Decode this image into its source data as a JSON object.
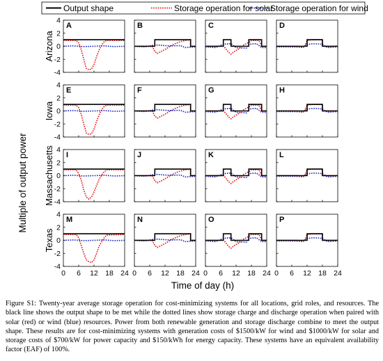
{
  "legend": [
    {
      "label": "Output shape",
      "color": "#000000",
      "dash": "solid"
    },
    {
      "label": "Storage operation for solar",
      "color": "#e41a1c",
      "dash": "dotted"
    },
    {
      "label": "Storage operation for wind",
      "color": "#1f2fbf",
      "dash": "dotted"
    }
  ],
  "row_labels": [
    "Arizona",
    "Iowa",
    "Massachusetts",
    "Texas"
  ],
  "ylabel": "Multiple of output power",
  "xlabel": "Time of day (h)",
  "caption": "Figure S1: Twenty-year average storage operation for cost-minimizing systems for all locations, grid roles, and resources. The black line shows the output shape to be met while the dotted lines show storage charge and discharge operation when paired with solar (red) or wind (blue) resources. Power from both renewable generation and storage discharge combine to meet the output shape. These results are for cost-minimizing systems with generation costs of $1500/kW for wind and $1000/kW for solar and storage costs of $700/kW for power capacity and $150/kWh for energy capacity. These systems have an equivalent availability factor (EAF) of 100%.",
  "chart_data": {
    "type": "line",
    "grid": false,
    "xlim": [
      0,
      24
    ],
    "ylim": [
      -4,
      4
    ],
    "xticks": [
      0,
      6,
      12,
      18,
      24
    ],
    "yticks": [
      -4,
      -2,
      0,
      2,
      4
    ],
    "output_shapes": {
      "A": [
        [
          0,
          1
        ],
        [
          24,
          1
        ]
      ],
      "B": [
        [
          0,
          0
        ],
        [
          8,
          0
        ],
        [
          8,
          1
        ],
        [
          22,
          1
        ],
        [
          22,
          0
        ],
        [
          24,
          0
        ]
      ],
      "C": [
        [
          0,
          0
        ],
        [
          7,
          0
        ],
        [
          7,
          1
        ],
        [
          10,
          1
        ],
        [
          10,
          0
        ],
        [
          17,
          0
        ],
        [
          17,
          1
        ],
        [
          22,
          1
        ],
        [
          22,
          0
        ],
        [
          24,
          0
        ]
      ],
      "D": [
        [
          0,
          0
        ],
        [
          12,
          0
        ],
        [
          12,
          1
        ],
        [
          18,
          1
        ],
        [
          18,
          0
        ],
        [
          24,
          0
        ]
      ]
    },
    "solar_profiles": {
      "A": [
        [
          0,
          0.9
        ],
        [
          5,
          0.9
        ],
        [
          6,
          0.5
        ],
        [
          7,
          -0.5
        ],
        [
          8,
          -2
        ],
        [
          9,
          -3.4
        ],
        [
          10,
          -3.6
        ],
        [
          11,
          -3.5
        ],
        [
          12,
          -2.8
        ],
        [
          13,
          -1.6
        ],
        [
          14,
          -0.6
        ],
        [
          15,
          0.2
        ],
        [
          16,
          0.7
        ],
        [
          17,
          0.9
        ],
        [
          24,
          0.9
        ]
      ],
      "B": [
        [
          0,
          0
        ],
        [
          7,
          0
        ],
        [
          8,
          -0.8
        ],
        [
          9,
          -1.1
        ],
        [
          10,
          -0.9
        ],
        [
          12,
          -0.5
        ],
        [
          14,
          0
        ],
        [
          16,
          0.4
        ],
        [
          18,
          0.7
        ],
        [
          20,
          0.9
        ],
        [
          22,
          1
        ],
        [
          22,
          0
        ],
        [
          24,
          0
        ]
      ],
      "C": [
        [
          0,
          0
        ],
        [
          6,
          0
        ],
        [
          7,
          0.1
        ],
        [
          9,
          -0.9
        ],
        [
          10,
          -1.2
        ],
        [
          11,
          -0.9
        ],
        [
          13,
          -0.4
        ],
        [
          15,
          0.2
        ],
        [
          17,
          0.6
        ],
        [
          18,
          0.9
        ],
        [
          21,
          0.9
        ],
        [
          22,
          0
        ],
        [
          24,
          0
        ]
      ],
      "D": [
        [
          0,
          0
        ],
        [
          8,
          0
        ],
        [
          9,
          -0.1
        ],
        [
          10,
          -0.2
        ],
        [
          11,
          -0.1
        ],
        [
          12,
          0.9
        ],
        [
          14,
          1
        ],
        [
          18,
          1
        ],
        [
          18,
          0
        ],
        [
          24,
          0
        ]
      ],
      "I": [
        [
          0,
          0.9
        ],
        [
          5,
          0.9
        ],
        [
          6,
          0.3
        ],
        [
          7,
          -0.7
        ],
        [
          8,
          -2.2
        ],
        [
          9,
          -3.3
        ],
        [
          10,
          -3.6
        ],
        [
          11,
          -3.3
        ],
        [
          12,
          -2.5
        ],
        [
          13,
          -1.5
        ],
        [
          14,
          -0.6
        ],
        [
          15,
          0.1
        ],
        [
          16,
          0.6
        ],
        [
          17,
          0.9
        ],
        [
          24,
          0.9
        ]
      ],
      "M": [
        [
          0,
          0.9
        ],
        [
          5,
          0.9
        ],
        [
          6,
          0.4
        ],
        [
          7,
          -0.8
        ],
        [
          8,
          -2
        ],
        [
          9,
          -3
        ],
        [
          10,
          -3.3
        ],
        [
          11,
          -3.4
        ],
        [
          12,
          -3
        ],
        [
          13,
          -2
        ],
        [
          14,
          -0.9
        ],
        [
          15,
          -0.2
        ],
        [
          16,
          0.4
        ],
        [
          17,
          0.8
        ],
        [
          24,
          0.9
        ]
      ]
    },
    "wind_profiles": {
      "A": [
        [
          0,
          0
        ],
        [
          4,
          0.05
        ],
        [
          8,
          -0.05
        ],
        [
          12,
          0
        ],
        [
          16,
          0.05
        ],
        [
          20,
          -0.05
        ],
        [
          24,
          0
        ]
      ],
      "B": [
        [
          0,
          0
        ],
        [
          4,
          -0.1
        ],
        [
          8,
          0.2
        ],
        [
          10,
          0.15
        ],
        [
          14,
          0.05
        ],
        [
          18,
          0.1
        ],
        [
          20,
          -0.2
        ],
        [
          24,
          -0.1
        ]
      ],
      "C": [
        [
          0,
          -0.1
        ],
        [
          4,
          -0.2
        ],
        [
          7,
          0.3
        ],
        [
          10,
          0.4
        ],
        [
          12,
          -0.2
        ],
        [
          16,
          -0.3
        ],
        [
          17,
          0.3
        ],
        [
          20,
          0.4
        ],
        [
          22,
          -0.2
        ],
        [
          24,
          -0.2
        ]
      ],
      "D": [
        [
          0,
          -0.1
        ],
        [
          6,
          -0.1
        ],
        [
          10,
          -0.15
        ],
        [
          12,
          0.3
        ],
        [
          15,
          0.4
        ],
        [
          18,
          0.3
        ],
        [
          20,
          -0.2
        ],
        [
          24,
          -0.1
        ]
      ]
    },
    "panels": [
      {
        "label": "A",
        "row": 0,
        "col": 0,
        "shape": "A",
        "solar": "A",
        "wind": "A"
      },
      {
        "label": "B",
        "row": 0,
        "col": 1,
        "shape": "B",
        "solar": "B",
        "wind": "B"
      },
      {
        "label": "C",
        "row": 0,
        "col": 2,
        "shape": "C",
        "solar": "C",
        "wind": "C"
      },
      {
        "label": "D",
        "row": 0,
        "col": 3,
        "shape": "D",
        "solar": "D",
        "wind": "D"
      },
      {
        "label": "E",
        "row": 1,
        "col": 0,
        "shape": "A",
        "solar": "A",
        "wind": "A"
      },
      {
        "label": "F",
        "row": 1,
        "col": 1,
        "shape": "B",
        "solar": "B",
        "wind": "B"
      },
      {
        "label": "G",
        "row": 1,
        "col": 2,
        "shape": "C",
        "solar": "C",
        "wind": "C"
      },
      {
        "label": "H",
        "row": 1,
        "col": 3,
        "shape": "D",
        "solar": "D",
        "wind": "D"
      },
      {
        "label": "I",
        "row": 2,
        "col": 0,
        "shape": "A",
        "solar": "I",
        "wind": "A"
      },
      {
        "label": "J",
        "row": 2,
        "col": 1,
        "shape": "B",
        "solar": "B",
        "wind": "B"
      },
      {
        "label": "K",
        "row": 2,
        "col": 2,
        "shape": "C",
        "solar": "C",
        "wind": "C"
      },
      {
        "label": "L",
        "row": 2,
        "col": 3,
        "shape": "D",
        "solar": "D",
        "wind": "D"
      },
      {
        "label": "M",
        "row": 3,
        "col": 0,
        "shape": "A",
        "solar": "M",
        "wind": "A"
      },
      {
        "label": "N",
        "row": 3,
        "col": 1,
        "shape": "B",
        "solar": "B",
        "wind": "B"
      },
      {
        "label": "O",
        "row": 3,
        "col": 2,
        "shape": "C",
        "solar": "C",
        "wind": "C"
      },
      {
        "label": "P",
        "row": 3,
        "col": 3,
        "shape": "D",
        "solar": "D",
        "wind": "D"
      }
    ]
  }
}
